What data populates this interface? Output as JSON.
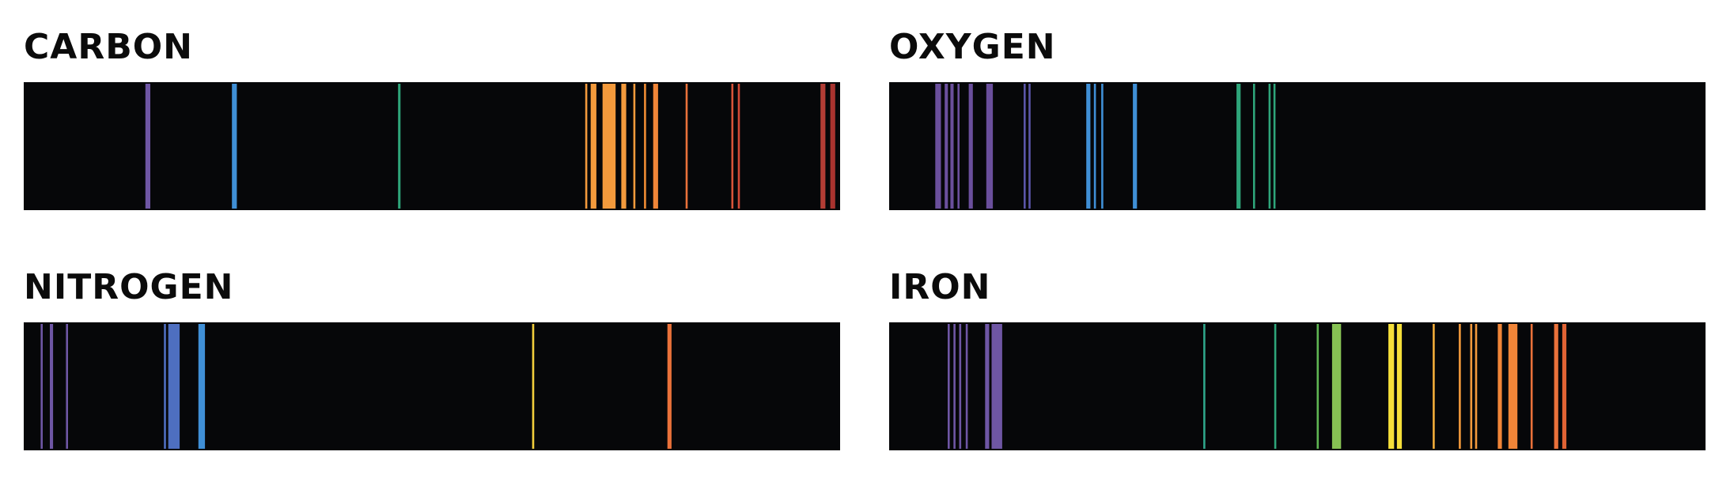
{
  "panels": [
    {
      "id": "carbon",
      "title": "CARBON",
      "lines": [
        {
          "pos": 0.152,
          "w": 0.006,
          "color": "#6e56a4"
        },
        {
          "pos": 0.258,
          "w": 0.006,
          "color": "#3f8fd6"
        },
        {
          "pos": 0.46,
          "w": 0.003,
          "color": "#2ea57a"
        },
        {
          "pos": 0.689,
          "w": 0.0025,
          "color": "#f39a3c"
        },
        {
          "pos": 0.698,
          "w": 0.007,
          "color": "#f39a3c"
        },
        {
          "pos": 0.717,
          "w": 0.016,
          "color": "#f39a3c"
        },
        {
          "pos": 0.735,
          "w": 0.006,
          "color": "#f39a3c"
        },
        {
          "pos": 0.748,
          "w": 0.0025,
          "color": "#f39a3c"
        },
        {
          "pos": 0.761,
          "w": 0.0025,
          "color": "#f08c34"
        },
        {
          "pos": 0.774,
          "w": 0.006,
          "color": "#f08538"
        },
        {
          "pos": 0.812,
          "w": 0.0025,
          "color": "#e9713a"
        },
        {
          "pos": 0.868,
          "w": 0.0025,
          "color": "#d8553a"
        },
        {
          "pos": 0.876,
          "w": 0.0025,
          "color": "#d24a36"
        },
        {
          "pos": 0.979,
          "w": 0.006,
          "color": "#b23d35"
        },
        {
          "pos": 0.991,
          "w": 0.006,
          "color": "#a8332f"
        }
      ]
    },
    {
      "id": "oxygen",
      "title": "OXYGEN",
      "lines": [
        {
          "pos": 0.06,
          "w": 0.007,
          "color": "#6a4f9c"
        },
        {
          "pos": 0.07,
          "w": 0.004,
          "color": "#6a4f9c"
        },
        {
          "pos": 0.077,
          "w": 0.004,
          "color": "#6a4f9c"
        },
        {
          "pos": 0.085,
          "w": 0.0025,
          "color": "#6a4f9c"
        },
        {
          "pos": 0.1,
          "w": 0.005,
          "color": "#6a4f9c"
        },
        {
          "pos": 0.123,
          "w": 0.008,
          "color": "#6a4f9c"
        },
        {
          "pos": 0.166,
          "w": 0.0025,
          "color": "#5a55a8"
        },
        {
          "pos": 0.172,
          "w": 0.0025,
          "color": "#5a55a8"
        },
        {
          "pos": 0.244,
          "w": 0.005,
          "color": "#3f8fd6"
        },
        {
          "pos": 0.252,
          "w": 0.0025,
          "color": "#3f8fd6"
        },
        {
          "pos": 0.261,
          "w": 0.0025,
          "color": "#3f8fd6"
        },
        {
          "pos": 0.301,
          "w": 0.005,
          "color": "#3f8fd6"
        },
        {
          "pos": 0.428,
          "w": 0.005,
          "color": "#2ea57a"
        },
        {
          "pos": 0.447,
          "w": 0.0025,
          "color": "#2ea57a"
        },
        {
          "pos": 0.466,
          "w": 0.0025,
          "color": "#2ea57a"
        },
        {
          "pos": 0.472,
          "w": 0.0025,
          "color": "#2ea57a"
        }
      ]
    },
    {
      "id": "nitrogen",
      "title": "NITROGEN",
      "lines": [
        {
          "pos": 0.022,
          "w": 0.0025,
          "color": "#6e56a4"
        },
        {
          "pos": 0.034,
          "w": 0.004,
          "color": "#6e56a4"
        },
        {
          "pos": 0.053,
          "w": 0.0025,
          "color": "#6e56a4"
        },
        {
          "pos": 0.173,
          "w": 0.0025,
          "color": "#4e6fc0"
        },
        {
          "pos": 0.184,
          "w": 0.014,
          "color": "#4e6fc0"
        },
        {
          "pos": 0.218,
          "w": 0.008,
          "color": "#3f8fd6"
        },
        {
          "pos": 0.624,
          "w": 0.0025,
          "color": "#f2cf3c"
        },
        {
          "pos": 0.791,
          "w": 0.005,
          "color": "#e9713a"
        }
      ]
    },
    {
      "id": "iron",
      "title": "IRON",
      "lines": [
        {
          "pos": 0.073,
          "w": 0.0025,
          "color": "#6e56a4"
        },
        {
          "pos": 0.08,
          "w": 0.0025,
          "color": "#6e56a4"
        },
        {
          "pos": 0.087,
          "w": 0.0025,
          "color": "#6e56a4"
        },
        {
          "pos": 0.095,
          "w": 0.0025,
          "color": "#6e56a4"
        },
        {
          "pos": 0.12,
          "w": 0.005,
          "color": "#6e56a4"
        },
        {
          "pos": 0.132,
          "w": 0.013,
          "color": "#6e56a4"
        },
        {
          "pos": 0.386,
          "w": 0.0025,
          "color": "#2ea58a"
        },
        {
          "pos": 0.473,
          "w": 0.0025,
          "color": "#2ea57a"
        },
        {
          "pos": 0.525,
          "w": 0.0025,
          "color": "#5fb653"
        },
        {
          "pos": 0.548,
          "w": 0.011,
          "color": "#86c153"
        },
        {
          "pos": 0.615,
          "w": 0.007,
          "color": "#f5df3a"
        },
        {
          "pos": 0.625,
          "w": 0.006,
          "color": "#f5df3a"
        },
        {
          "pos": 0.667,
          "w": 0.0025,
          "color": "#f3ad3a"
        },
        {
          "pos": 0.699,
          "w": 0.0025,
          "color": "#f39a3c"
        },
        {
          "pos": 0.713,
          "w": 0.0025,
          "color": "#f39a3c"
        },
        {
          "pos": 0.719,
          "w": 0.0025,
          "color": "#f39a3c"
        },
        {
          "pos": 0.748,
          "w": 0.005,
          "color": "#f08538"
        },
        {
          "pos": 0.764,
          "w": 0.011,
          "color": "#f08538"
        },
        {
          "pos": 0.787,
          "w": 0.0025,
          "color": "#e9713a"
        },
        {
          "pos": 0.817,
          "w": 0.005,
          "color": "#e9713a"
        },
        {
          "pos": 0.827,
          "w": 0.005,
          "color": "#e06334"
        }
      ]
    }
  ]
}
